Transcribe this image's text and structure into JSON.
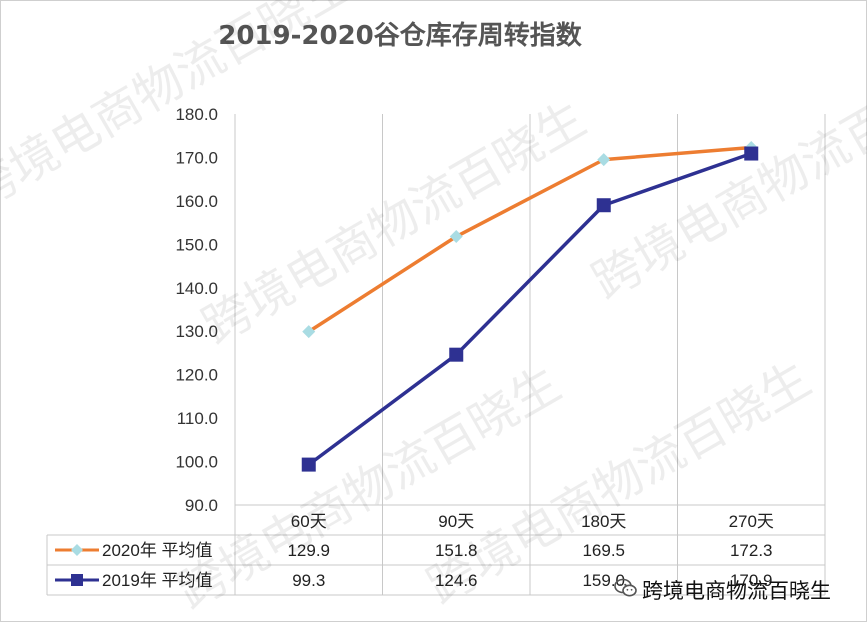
{
  "chart_data": {
    "type": "line",
    "title": "2019-2020谷仓库存周转指数",
    "categories": [
      "60天",
      "90天",
      "180天",
      "270天"
    ],
    "ylim": [
      90,
      180
    ],
    "yticks": [
      "90.0",
      "100.0",
      "110.0",
      "120.0",
      "130.0",
      "140.0",
      "150.0",
      "160.0",
      "170.0",
      "180.0"
    ],
    "grid": "vertical",
    "legend": "data-table",
    "series": [
      {
        "name": "2020年 平均值",
        "values": [
          129.9,
          151.8,
          169.5,
          172.3
        ],
        "value_labels": [
          "129.9",
          "151.8",
          "169.5",
          "172.3"
        ],
        "color": "#ED7D31",
        "marker": "diamond",
        "marker_color": "#A9DCE3"
      },
      {
        "name": "2019年 平均值",
        "values": [
          99.3,
          124.6,
          159.0,
          170.9
        ],
        "value_labels": [
          "99.3",
          "124.6",
          "159.0",
          "170.9"
        ],
        "color": "#2E3192",
        "marker": "square",
        "marker_color": "#2E3192"
      }
    ]
  },
  "watermark": {
    "text": "跨境电商物流百晓生",
    "label": "跨境电商物流百晓生",
    "icon": "wechat-icon"
  }
}
